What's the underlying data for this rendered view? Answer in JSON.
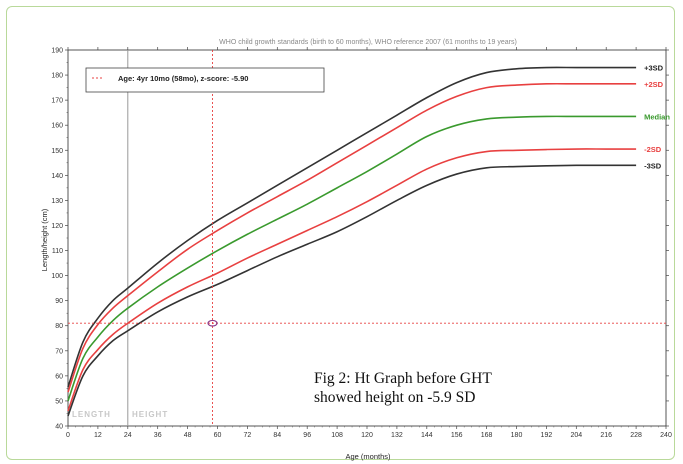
{
  "chart_data": {
    "type": "line",
    "title": "WHO child growth standards (birth to 60 months), WHO reference 2007 (61 months to 19 years)",
    "xlabel": "Age (months)",
    "ylabel": "Length/height (cm)",
    "xlim": [
      0,
      240
    ],
    "ylim": [
      40,
      190
    ],
    "xticks": [
      0,
      12,
      24,
      36,
      48,
      60,
      72,
      84,
      96,
      108,
      120,
      132,
      144,
      156,
      168,
      180,
      192,
      204,
      216,
      228,
      240
    ],
    "yticks": [
      40,
      50,
      60,
      70,
      80,
      90,
      100,
      110,
      120,
      130,
      140,
      150,
      160,
      170,
      180,
      190
    ],
    "grid": false,
    "legend_position": "top-left",
    "x": [
      0,
      6,
      12,
      18,
      24,
      36,
      48,
      60,
      72,
      84,
      96,
      108,
      120,
      132,
      144,
      156,
      168,
      180,
      192,
      204,
      216,
      228
    ],
    "series": [
      {
        "name": "+3SD",
        "color": "#333333",
        "values": [
          55.5,
          73.5,
          83,
          90,
          95,
          105,
          114,
          122,
          129,
          136,
          143,
          150,
          157,
          164,
          171,
          177,
          181,
          182.5,
          183,
          183,
          183,
          183
        ]
      },
      {
        "name": "+2SD",
        "color": "#e84040",
        "values": [
          53.5,
          71,
          80.5,
          87,
          92,
          101.5,
          110.5,
          118,
          125,
          131.5,
          138,
          145,
          152,
          159,
          166,
          171.5,
          175,
          176,
          176.5,
          176.5,
          176.5,
          176.5
        ]
      },
      {
        "name": "Median",
        "color": "#3a9a2e",
        "values": [
          50,
          67,
          75.5,
          82,
          87,
          95.5,
          103,
          110,
          116.5,
          122.5,
          128.5,
          135,
          141.5,
          148.5,
          155.5,
          160,
          162.5,
          163.2,
          163.5,
          163.5,
          163.5,
          163.5
        ]
      },
      {
        "name": "-2SD",
        "color": "#e84040",
        "values": [
          46,
          62.5,
          70.5,
          76.5,
          81,
          89,
          95.5,
          101,
          107,
          112.5,
          118,
          123.5,
          129.5,
          136,
          142.5,
          147,
          149.5,
          150,
          150.3,
          150.5,
          150.5,
          150.5
        ]
      },
      {
        "name": "-3SD",
        "color": "#333333",
        "values": [
          44,
          60,
          68,
          74,
          78,
          85.5,
          91.5,
          96.5,
          102,
          107.5,
          112.5,
          117.5,
          123.5,
          130,
          136,
          140.5,
          143,
          143.5,
          143.8,
          144,
          144,
          144
        ]
      }
    ],
    "marker": {
      "x": 58,
      "y": 81,
      "label": "Age: 4yr 10mo (58mo), z-score: -5.90"
    },
    "reference_line_x": 24,
    "annotations": [
      "LENGTH",
      "HEIGHT"
    ]
  },
  "caption": {
    "line1": "Fig 2: Ht Graph before GHT",
    "line2": "showed height on -5.9 SD"
  },
  "colors": {
    "frame_border": "#b9d99a",
    "marker": "#e84040",
    "marker_point": "#8a3a8a"
  }
}
